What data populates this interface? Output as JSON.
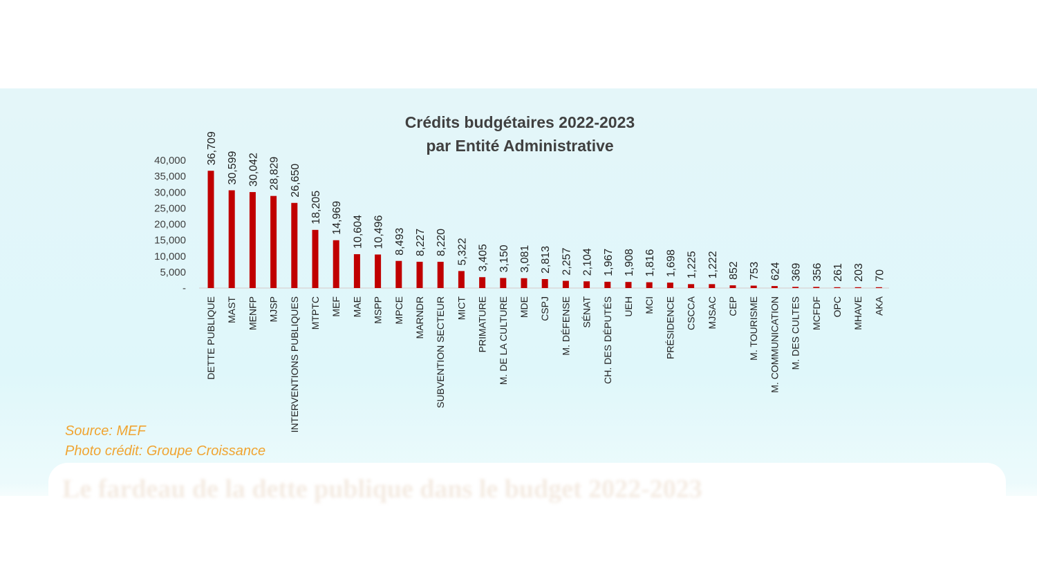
{
  "colors": {
    "bar": "#c00000",
    "caption": "#f0a431",
    "axis": "#d9d9d9"
  },
  "source_label": "Source: MEF",
  "photo_credit": "Photo crédit: Groupe Croissance",
  "headline": "Le fardeau de la dette publique dans le budget 2022-2023",
  "chart_data": {
    "type": "bar",
    "title": "Crédits budgétaires 2022-2023",
    "subtitle": "par Entité  Administrative",
    "xlabel": "",
    "ylabel": "",
    "ylim": [
      0,
      40000
    ],
    "yticks": [
      0,
      5000,
      10000,
      15000,
      20000,
      25000,
      30000,
      35000,
      40000
    ],
    "ytick_labels": [
      "-",
      "5,000",
      "10,000",
      "15,000",
      "20,000",
      "25,000",
      "30,000",
      "35,000",
      "40,000"
    ],
    "categories": [
      "DETTE PUBLIQUE",
      "MAST",
      "MENFP",
      "MJSP",
      "INTERVENTIONS PUBLIQUES",
      "MTPTC",
      "MEF",
      "MAE",
      "MSPP",
      "MPCE",
      "MARNDR",
      "SUBVENTION SECTEUR",
      "MICT",
      "PRIMATURE",
      "M. DE LA CULTURE",
      "MDE",
      "CSPJ",
      "M. DÉFENSE",
      "SÉNAT",
      "CH. DES DÉPUTÉS",
      "UEH",
      "MCI",
      "PRÉSIDENCE",
      "CSCCA",
      "MJSAC",
      "CEP",
      "M. TOURISME",
      "M. COMMUNICATION",
      "M. DES CULTES",
      "MCFDF",
      "OPC",
      "MHAVE",
      "AKA"
    ],
    "values": [
      36709,
      30599,
      30042,
      28829,
      26650,
      18205,
      14969,
      10604,
      10496,
      8493,
      8227,
      8220,
      5322,
      3405,
      3150,
      3081,
      2813,
      2257,
      2104,
      1967,
      1908,
      1816,
      1698,
      1225,
      1222,
      852,
      753,
      624,
      369,
      356,
      261,
      203,
      70
    ],
    "value_labels": [
      "36,709",
      "30,599",
      "30,042",
      "28,829",
      "26,650",
      "18,205",
      "14,969",
      "10,604",
      "10,496",
      "8,493",
      "8,227",
      "8,220",
      "5,322",
      "3,405",
      "3,150",
      "3,081",
      "2,813",
      "2,257",
      "2,104",
      "1,967",
      "1,908",
      "1,816",
      "1,698",
      "1,225",
      "1,222",
      "852",
      "753",
      "624",
      "369",
      "356",
      "261",
      "203",
      "70"
    ]
  }
}
